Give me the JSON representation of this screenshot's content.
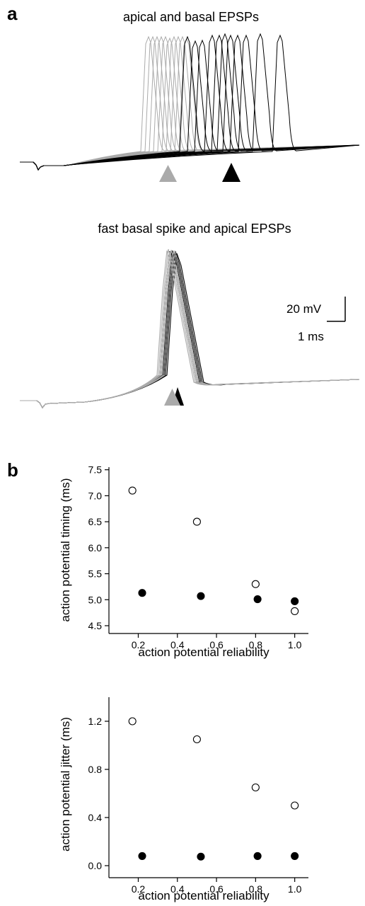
{
  "panels": {
    "a_letter": "a",
    "b_letter": "b"
  },
  "traces": {
    "top_title": "apical and basal EPSPs",
    "bottom_title": "fast basal spike and apical EPSPs",
    "scale_voltage": "20 mV",
    "scale_time": "1 ms",
    "colors": {
      "apical": "#aaaaaa",
      "basal": "#000000"
    }
  },
  "chart_data": [
    {
      "type": "scatter",
      "xlabel": "action potential reliability",
      "ylabel": "action potential timing (ms)",
      "xlim": [
        0.05,
        1.07
      ],
      "ylim": [
        4.35,
        7.55
      ],
      "xticks": [
        "0.2",
        "0.4",
        "0.6",
        "0.8",
        "1.0"
      ],
      "yticks": [
        "4.5",
        "5.0",
        "5.5",
        "6.0",
        "6.5",
        "7.0",
        "7.5"
      ],
      "series": [
        {
          "marker": "open-circle",
          "x": [
            0.17,
            0.5,
            0.8,
            1.0
          ],
          "y": [
            7.1,
            6.5,
            5.3,
            4.78
          ]
        },
        {
          "marker": "filled-circle",
          "x": [
            0.22,
            0.52,
            0.81,
            1.0
          ],
          "y": [
            5.13,
            5.07,
            5.01,
            4.97
          ]
        }
      ]
    },
    {
      "type": "scatter",
      "xlabel": "action potential reliability",
      "ylabel": "action potential jitter (ms)",
      "xlim": [
        0.05,
        1.07
      ],
      "ylim": [
        -0.1,
        1.4
      ],
      "xticks": [
        "0.2",
        "0.4",
        "0.6",
        "0.8",
        "1.0"
      ],
      "yticks": [
        "0.0",
        "0.4",
        "0.8",
        "1.2"
      ],
      "series": [
        {
          "marker": "open-circle",
          "x": [
            0.17,
            0.5,
            0.8,
            1.0
          ],
          "y": [
            1.2,
            1.05,
            0.65,
            0.5
          ]
        },
        {
          "marker": "filled-circle",
          "x": [
            0.22,
            0.52,
            0.81,
            1.0
          ],
          "y": [
            0.08,
            0.075,
            0.08,
            0.08
          ]
        }
      ]
    }
  ]
}
